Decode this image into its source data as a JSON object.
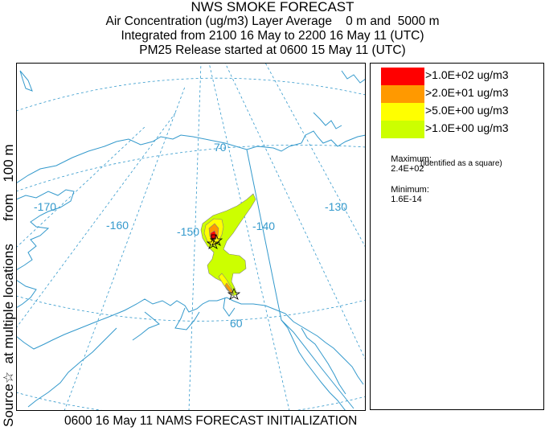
{
  "header": {
    "title": "NWS SMOKE FORECAST",
    "line2": "Air Concentration (ug/m3) Layer Average    0 m and  5000 m",
    "line3": "Integrated from 2100 16 May to 2200 16 May 11 (UTC)",
    "line4": "PM25 Release started at 0600 15 May 11 (UTC)"
  },
  "side_label": "Source☆  at multiple locations      from   100 m",
  "footer": "0600 16 May 11 NAMS FORECAST INITIALIZATION",
  "map": {
    "lon_labels": [
      "-170",
      "-160",
      "-150",
      "-140",
      "-130"
    ],
    "lat_labels": [
      "70",
      "60"
    ],
    "colors": {
      "coast": "#3399cc",
      "grid": "#3399cc",
      "boundary": "#3399cc",
      "plume_edge": "#808080"
    }
  },
  "legend": {
    "bins": [
      {
        "label": ">1.0E+02 ug/m3",
        "color": "#ff0000"
      },
      {
        "label": ">2.0E+01 ug/m3",
        "color": "#ff9900"
      },
      {
        "label": ">5.0E+00 ug/m3",
        "color": "#ffff00"
      },
      {
        "label": ">1.0E+00 ug/m3",
        "color": "#ccff00"
      }
    ],
    "maximum_label": "Maximum:",
    "maximum_value": "2.4E+02",
    "maximum_note": "(identified as a square)",
    "minimum_label": "Minimum:",
    "minimum_value": "1.6E-14"
  }
}
